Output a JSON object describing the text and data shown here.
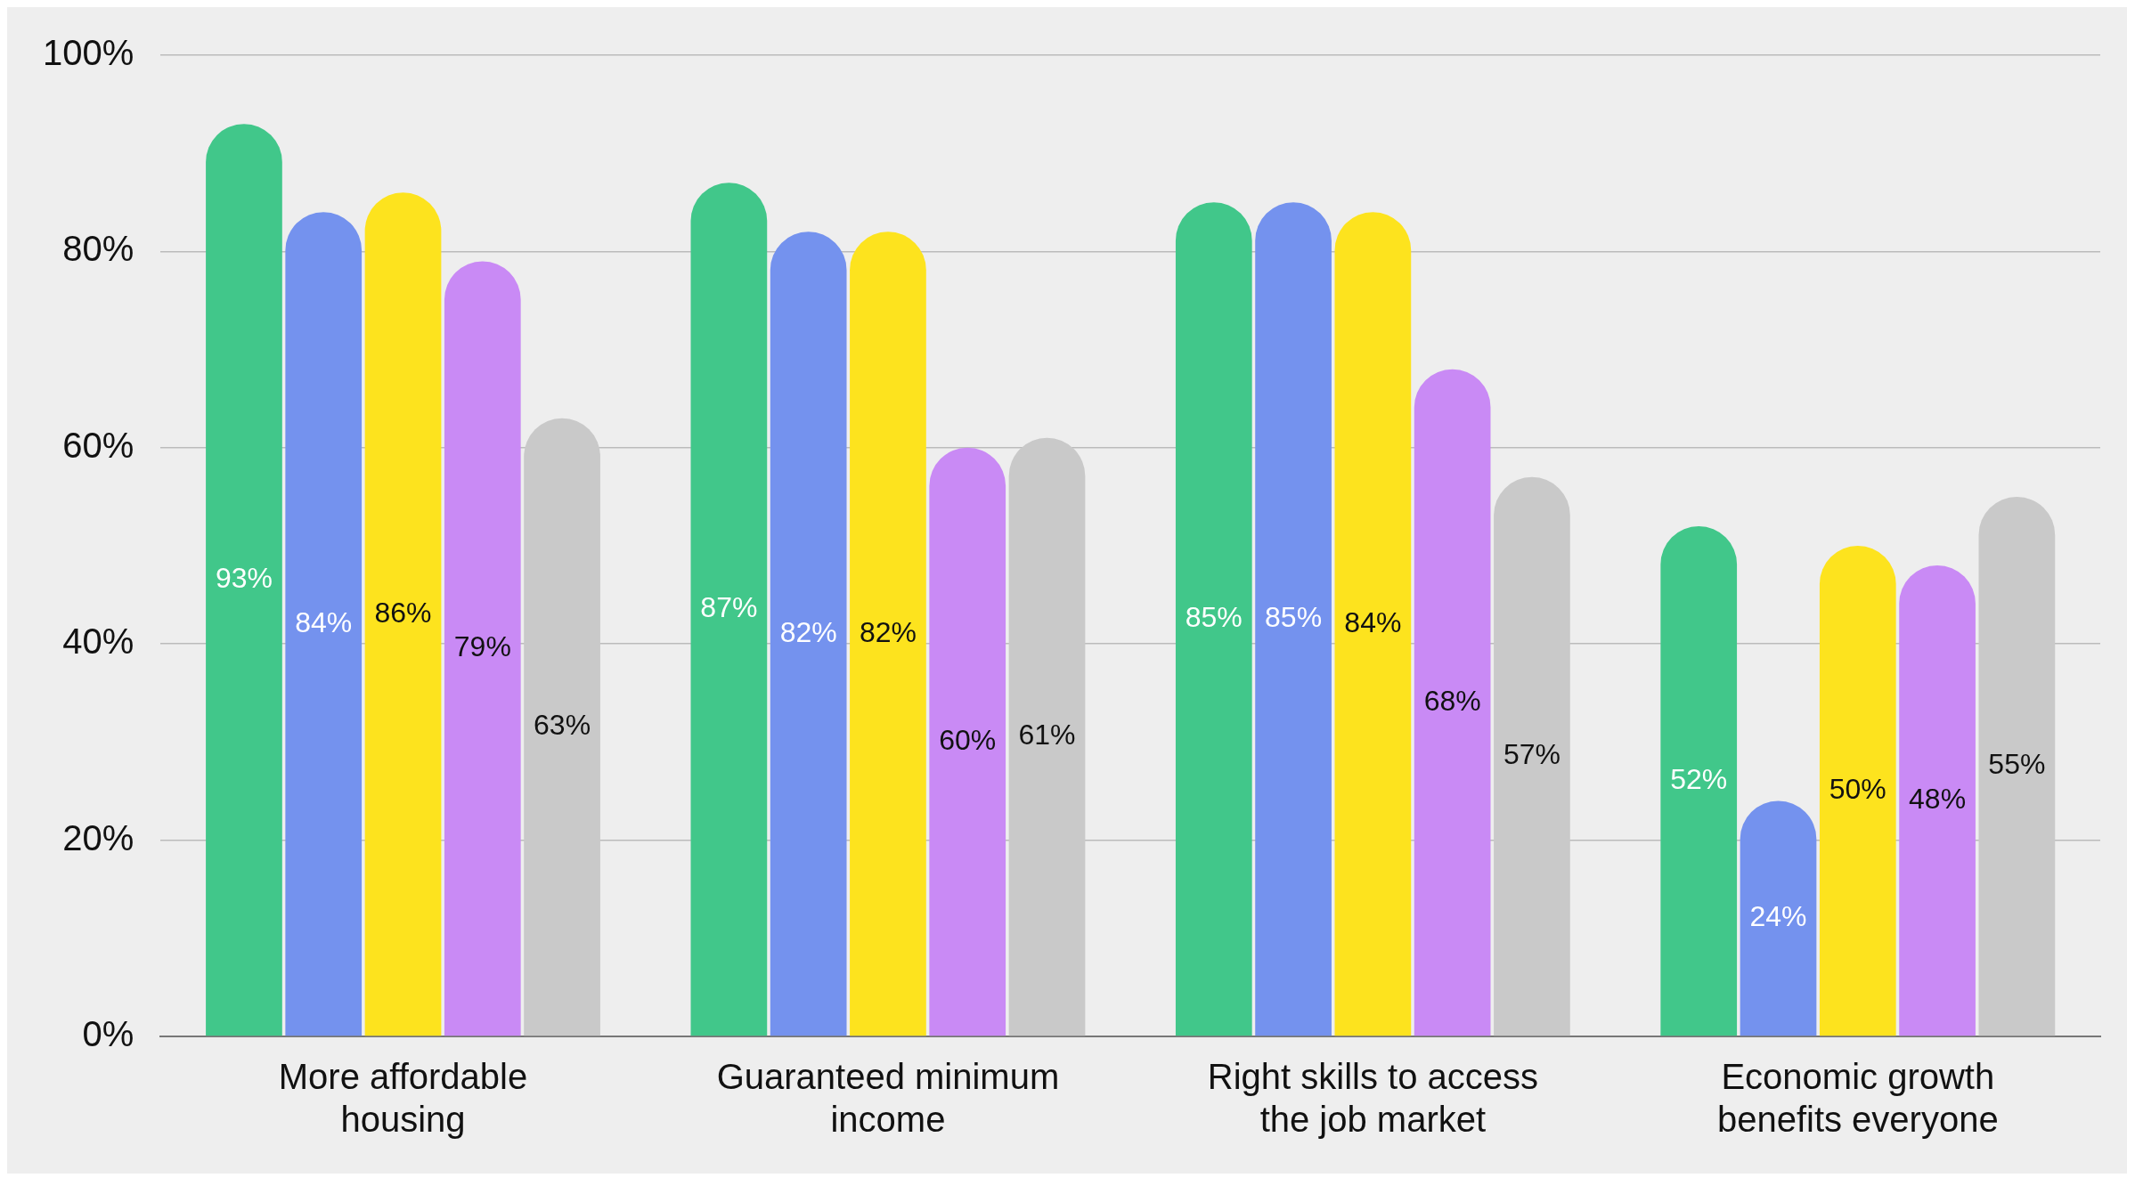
{
  "chart_data": {
    "type": "bar",
    "categories": [
      "More affordable housing",
      "Guaranteed minimum income",
      "Right skills to access the job market",
      "Economic growth benefits everyone"
    ],
    "series": [
      {
        "color": "#41c78a",
        "values": [
          93,
          87,
          85,
          52
        ],
        "value_labels": [
          "93%",
          "87%",
          "85%",
          "52%"
        ]
      },
      {
        "color": "#7492ee",
        "values": [
          84,
          82,
          85,
          24
        ],
        "value_labels": [
          "84%",
          "82%",
          "85%",
          "24%"
        ]
      },
      {
        "color": "#fde31e",
        "values": [
          86,
          82,
          84,
          50
        ],
        "value_labels": [
          "86%",
          "82%",
          "84%",
          "50%"
        ]
      },
      {
        "color": "#c98af5",
        "values": [
          79,
          60,
          68,
          48
        ],
        "value_labels": [
          "79%",
          "60%",
          "68%",
          "48%"
        ]
      },
      {
        "color": "#c9c9c9",
        "values": [
          63,
          61,
          57,
          55
        ],
        "value_labels": [
          "63%",
          "61%",
          "57%",
          "55%"
        ]
      }
    ],
    "ylim": [
      0,
      100
    ],
    "yticks": [
      {
        "value": 0,
        "label": "0%"
      },
      {
        "value": 20,
        "label": "20%"
      },
      {
        "value": 40,
        "label": "40%"
      },
      {
        "value": 60,
        "label": "60%"
      },
      {
        "value": 80,
        "label": "80%"
      },
      {
        "value": 100,
        "label": "100%"
      }
    ],
    "grid": "y",
    "legend": false
  }
}
